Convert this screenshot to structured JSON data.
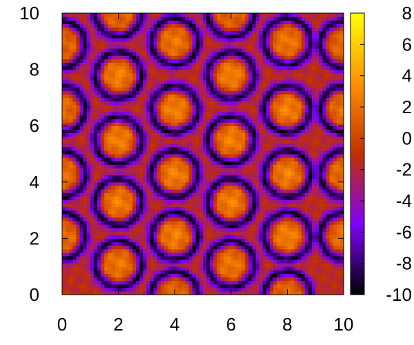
{
  "chart_data": {
    "type": "heatmap",
    "title": "",
    "xlabel": "",
    "ylabel": "",
    "xlim": [
      0,
      10
    ],
    "ylim": [
      0,
      10
    ],
    "x_ticks": [
      "0",
      "2",
      "4",
      "6",
      "8",
      "10"
    ],
    "y_ticks": [
      "0",
      "2",
      "4",
      "6",
      "8",
      "10"
    ],
    "colorbar": {
      "range": [
        -10,
        8
      ],
      "ticks": [
        "8",
        "6",
        "4",
        "2",
        "0",
        "-2",
        "-4",
        "-6",
        "-8",
        "-10"
      ],
      "palette": [
        "#000000",
        "#8000ff",
        "#c03000",
        "#ff9000",
        "#ffff00"
      ]
    },
    "peaks": [
      {
        "x": 2,
        "y": 7.8,
        "value": 4.5
      },
      {
        "x": 4,
        "y": 6.6,
        "value": 4.5
      },
      {
        "x": 6,
        "y": 7.8,
        "value": 4.5
      },
      {
        "x": 8,
        "y": 6.6,
        "value": 4.5
      },
      {
        "x": 4,
        "y": 9.0,
        "value": 4.0
      },
      {
        "x": 8,
        "y": 9.0,
        "value": 4.0
      },
      {
        "x": 2,
        "y": 5.5,
        "value": 4.5
      },
      {
        "x": 6,
        "y": 5.5,
        "value": 4.5
      },
      {
        "x": 4,
        "y": 4.3,
        "value": 4.5
      },
      {
        "x": 8,
        "y": 4.3,
        "value": 4.5
      },
      {
        "x": 2,
        "y": 3.3,
        "value": 4.5
      },
      {
        "x": 6,
        "y": 3.3,
        "value": 4.5
      },
      {
        "x": 4,
        "y": 2.1,
        "value": 4.5
      },
      {
        "x": 8,
        "y": 2.1,
        "value": 4.5
      },
      {
        "x": 2,
        "y": 1.1,
        "value": 4.0
      },
      {
        "x": 6,
        "y": 1.1,
        "value": 4.0
      },
      {
        "x": 0,
        "y": 6.6,
        "value": 3.5
      },
      {
        "x": 0,
        "y": 4.3,
        "value": 3.5
      },
      {
        "x": 0,
        "y": 2.1,
        "value": 3.5
      },
      {
        "x": 10,
        "y": 6.6,
        "value": 3.5
      },
      {
        "x": 10,
        "y": 4.3,
        "value": 3.5
      },
      {
        "x": 10,
        "y": 2.1,
        "value": 3.5
      },
      {
        "x": 2,
        "y": 10.0,
        "value": 3.0
      },
      {
        "x": 6,
        "y": 10.0,
        "value": 3.0
      },
      {
        "x": 4,
        "y": 0.0,
        "value": 3.0
      },
      {
        "x": 8,
        "y": 0.0,
        "value": 3.0
      },
      {
        "x": 0,
        "y": 8.9,
        "value": 3.0
      },
      {
        "x": 10,
        "y": 8.9,
        "value": 3.0
      }
    ],
    "background_value": -1.5,
    "ring_value": -9.5,
    "grid": false
  }
}
